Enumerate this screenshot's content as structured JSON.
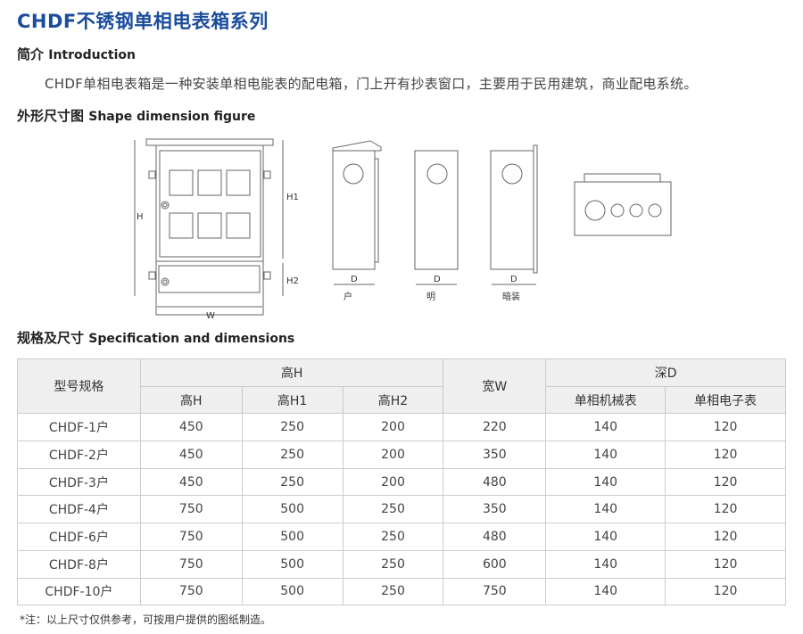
{
  "title": "CHDF不锈钢单相电表箱系列",
  "intro": {
    "heading_cn": "简介",
    "heading_en": "Introduction",
    "text": "CHDF单相电表箱是一种安装单相电能表的配电箱，门上开有抄表窗口，主要用于民用建筑，商业配电系统。"
  },
  "figure": {
    "heading_cn": "外形尺寸图",
    "heading_en": "Shape dimension figure",
    "labels": {
      "H": "H",
      "H1": "H1",
      "H2": "H2",
      "W": "W",
      "D": "D"
    },
    "views": [
      "户",
      "明",
      "暗装"
    ]
  },
  "spec": {
    "heading_cn": "规格及尺寸",
    "heading_en": "Specification and dimensions",
    "headers": {
      "model": "型号规格",
      "height_group": "高H",
      "h": "高H",
      "h1": "高H1",
      "h2": "高H2",
      "width": "宽W",
      "depth_group": "深D",
      "mech": "单相机械表",
      "elec": "单相电子表"
    },
    "rows": [
      [
        "CHDF-1户",
        "450",
        "250",
        "200",
        "220",
        "140",
        "120"
      ],
      [
        "CHDF-2户",
        "450",
        "250",
        "200",
        "350",
        "140",
        "120"
      ],
      [
        "CHDF-3户",
        "450",
        "250",
        "200",
        "480",
        "140",
        "120"
      ],
      [
        "CHDF-4户",
        "750",
        "500",
        "250",
        "350",
        "140",
        "120"
      ],
      [
        "CHDF-6户",
        "750",
        "500",
        "250",
        "480",
        "140",
        "120"
      ],
      [
        "CHDF-8户",
        "750",
        "500",
        "250",
        "600",
        "140",
        "120"
      ],
      [
        "CHDF-10户",
        "750",
        "500",
        "250",
        "750",
        "140",
        "120"
      ]
    ]
  },
  "note": "*注：以上尺寸仅供参考，可按用户提供的图纸制造。"
}
